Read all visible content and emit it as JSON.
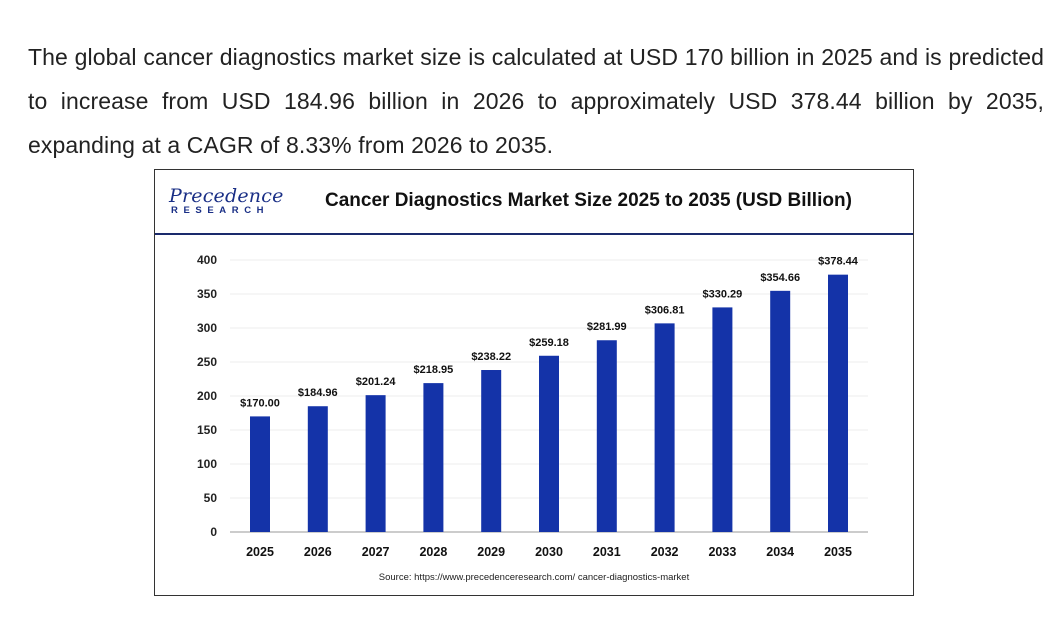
{
  "intro": {
    "text": "The global cancer diagnostics market size is calculated at USD 170 billion in 2025 and is predicted to increase from USD 184.96 billion in 2026 to approximately USD 378.44 billion by 2035, expanding at a CAGR of 8.33% from 2026 to 2035."
  },
  "logo": {
    "main": "Precedence",
    "sub": "RESEARCH"
  },
  "colors": {
    "bar": "#1433a8",
    "logo": "#1a2f86",
    "header_rule": "#1a2a6c"
  },
  "chart_data": {
    "type": "bar",
    "title": "Cancer Diagnostics Market Size 2025 to 2035 (USD Billion)",
    "categories": [
      "2025",
      "2026",
      "2027",
      "2028",
      "2029",
      "2030",
      "2031",
      "2032",
      "2033",
      "2034",
      "2035"
    ],
    "values": [
      170.0,
      184.96,
      201.24,
      218.95,
      238.22,
      259.18,
      281.99,
      306.81,
      330.29,
      354.66,
      378.44
    ],
    "data_labels": [
      "$170.00",
      "$184.96",
      "$201.24",
      "$218.95",
      "$238.22",
      "$259.18",
      "$281.99",
      "$306.81",
      "$330.29",
      "$354.66",
      "$378.44"
    ],
    "yticks": [
      0,
      50,
      100,
      150,
      200,
      250,
      300,
      350,
      400
    ],
    "ylim": [
      0,
      400
    ],
    "xlabel": "",
    "ylabel": "",
    "grid": true,
    "legend": "none",
    "source": "Source: https://www.precedenceresearch.com/ cancer-diagnostics-market"
  }
}
